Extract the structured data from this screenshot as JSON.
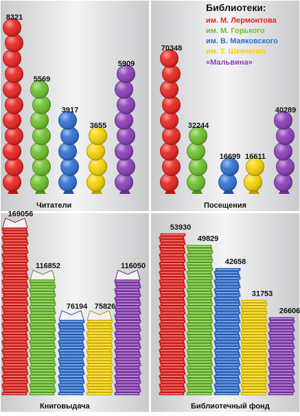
{
  "legend": {
    "title": "Библиотеки:",
    "items": [
      {
        "label": "им. М. Лермонтова",
        "color": "#e8231e"
      },
      {
        "label": "им. М. Горького",
        "color": "#6cc02b"
      },
      {
        "label": "им. В. Маяковского",
        "color": "#2f6fd1"
      },
      {
        "label": "им. Т. Шевченко",
        "color": "#f5d100"
      },
      {
        "label": "«Мальвина»",
        "color": "#8a3fb8"
      }
    ]
  },
  "chart_data": [
    {
      "type": "bar",
      "title": "Читатели",
      "categories": [
        "им. М. Лермонтова",
        "им. М. Горького",
        "им. В. Маяковского",
        "им. Т. Шевченко",
        "«Мальвина»"
      ],
      "values": [
        8321,
        5569,
        3917,
        3655,
        5909
      ],
      "value_labels": [
        "8321",
        "5569",
        "3917",
        "3655",
        "5909"
      ],
      "marker": "balloons"
    },
    {
      "type": "bar",
      "title": "Посещения",
      "categories": [
        "им. М. Лермонтова",
        "им. М. Горького",
        "им. В. Маяковского",
        "им. Т. Шевченко",
        "«Мальвина»"
      ],
      "values": [
        70348,
        32244,
        16699,
        16611,
        40289
      ],
      "value_labels": [
        "70348",
        "32244",
        "16699",
        "16611",
        "40289"
      ],
      "marker": "balloons"
    },
    {
      "type": "bar",
      "title": "Книговыдача",
      "categories": [
        "им. М. Лермонтова",
        "им. М. Горького",
        "им. В. Маяковского",
        "им. Т. Шевченко",
        "«Мальвина»"
      ],
      "values": [
        169056,
        116852,
        76194,
        75826,
        116050
      ],
      "value_labels": [
        "169056",
        "116852",
        "76194",
        "75826",
        "116050"
      ],
      "marker": "books"
    },
    {
      "type": "bar",
      "title": "Библиотечный фонд",
      "categories": [
        "им. М. Лермонтова",
        "им. М. Горького",
        "им. В. Маяковского",
        "им. Т. Шевченко",
        "«Мальвина»"
      ],
      "values": [
        53930,
        49829,
        42658,
        31753,
        26606
      ],
      "value_labels": [
        "53930",
        "49829",
        "42658",
        "31753",
        "26606"
      ],
      "marker": "books"
    }
  ]
}
